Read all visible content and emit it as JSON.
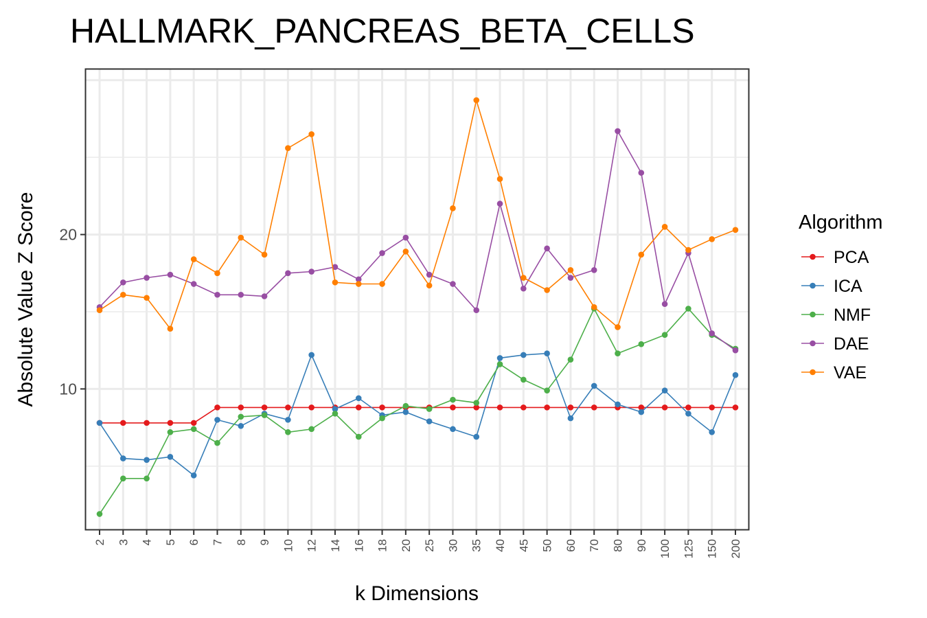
{
  "chart_data": {
    "type": "line",
    "title": "HALLMARK_PANCREAS_BETA_CELLS",
    "xlabel": "k Dimensions",
    "ylabel": "Absolute Value Z Score",
    "categories": [
      "2",
      "3",
      "4",
      "5",
      "6",
      "7",
      "8",
      "9",
      "10",
      "12",
      "14",
      "16",
      "18",
      "20",
      "25",
      "30",
      "35",
      "40",
      "45",
      "50",
      "60",
      "70",
      "80",
      "90",
      "100",
      "125",
      "150",
      "200"
    ],
    "y_ticks": [
      10,
      20
    ],
    "ylim": [
      0.9,
      30.7
    ],
    "grid": true,
    "legend_title": "Algorithm",
    "legend_position": "right",
    "series": [
      {
        "name": "PCA",
        "color": "#e41a1c",
        "values": [
          7.8,
          7.8,
          7.8,
          7.8,
          7.8,
          8.8,
          8.8,
          8.8,
          8.8,
          8.8,
          8.8,
          8.8,
          8.8,
          8.8,
          8.8,
          8.8,
          8.8,
          8.8,
          8.8,
          8.8,
          8.8,
          8.8,
          8.8,
          8.8,
          8.8,
          8.8,
          8.8,
          8.8
        ]
      },
      {
        "name": "ICA",
        "color": "#377eb8",
        "values": [
          7.8,
          5.5,
          5.4,
          5.6,
          4.4,
          8.0,
          7.6,
          8.4,
          8.0,
          12.2,
          8.7,
          9.4,
          8.3,
          8.5,
          7.9,
          7.4,
          6.9,
          12.0,
          12.2,
          12.3,
          8.1,
          10.2,
          9.0,
          8.5,
          9.9,
          8.4,
          7.2,
          10.9
        ]
      },
      {
        "name": "NMF",
        "color": "#4daf4a",
        "values": [
          1.9,
          4.2,
          4.2,
          7.2,
          7.4,
          6.5,
          8.2,
          8.3,
          7.2,
          7.4,
          8.4,
          6.9,
          8.1,
          8.9,
          8.7,
          9.3,
          9.1,
          11.6,
          10.6,
          9.9,
          11.9,
          15.2,
          12.3,
          12.9,
          13.5,
          15.2,
          13.5,
          12.6
        ]
      },
      {
        "name": "DAE",
        "color": "#984ea3",
        "values": [
          15.3,
          16.9,
          17.2,
          17.4,
          16.8,
          16.1,
          16.1,
          16.0,
          17.5,
          17.6,
          17.9,
          17.1,
          18.8,
          19.8,
          17.4,
          16.8,
          15.1,
          22.0,
          16.5,
          19.1,
          17.2,
          17.7,
          26.7,
          24.0,
          15.5,
          18.8,
          13.6,
          12.5
        ]
      },
      {
        "name": "VAE",
        "color": "#ff7f00",
        "values": [
          15.1,
          16.1,
          15.9,
          13.9,
          18.4,
          17.5,
          19.8,
          18.7,
          25.6,
          26.5,
          16.9,
          16.8,
          16.8,
          18.9,
          16.7,
          21.7,
          28.7,
          23.6,
          17.2,
          16.4,
          17.7,
          15.3,
          14.0,
          18.7,
          20.5,
          19.0,
          19.7,
          20.3
        ]
      }
    ]
  }
}
